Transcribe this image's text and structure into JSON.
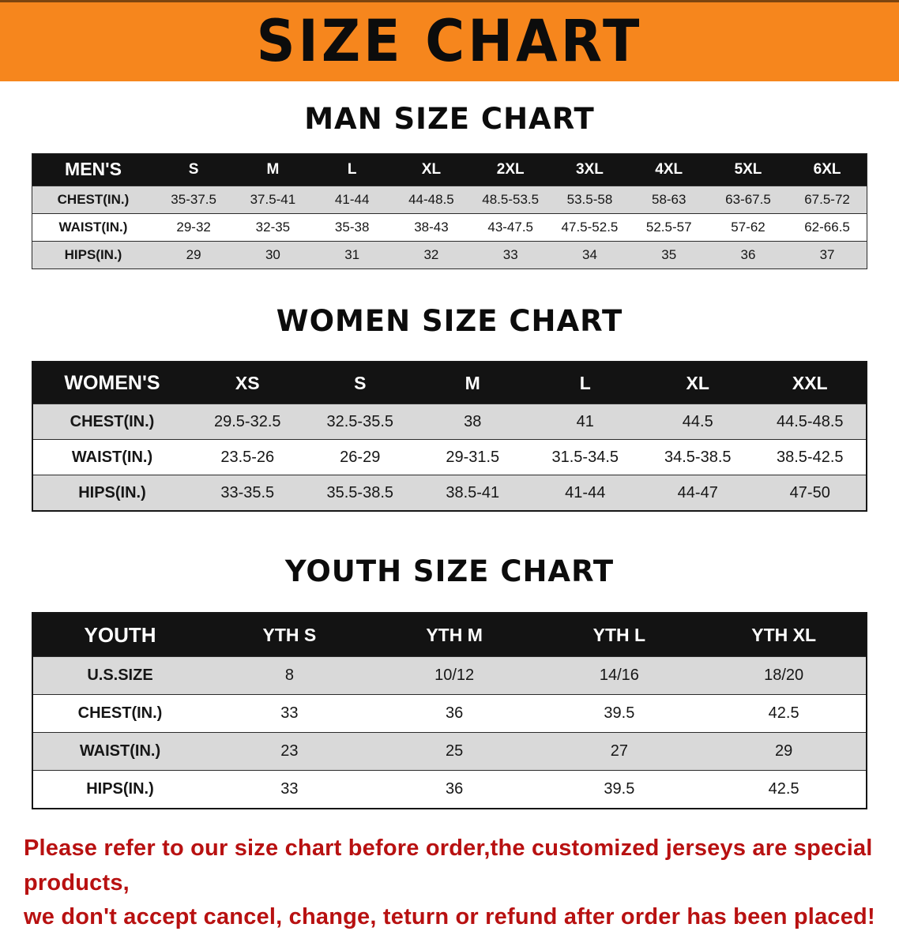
{
  "banner": {
    "title": "SIZE CHART"
  },
  "sections": {
    "men": {
      "heading": "MAN SIZE CHART"
    },
    "women": {
      "heading": "WOMEN SIZE CHART"
    },
    "youth": {
      "heading": "YOUTH SIZE CHART"
    }
  },
  "tables": {
    "men": {
      "header": [
        "MEN'S",
        "S",
        "M",
        "L",
        "XL",
        "2XL",
        "3XL",
        "4XL",
        "5XL",
        "6XL"
      ],
      "rows": [
        [
          "CHEST(IN.)",
          "35-37.5",
          "37.5-41",
          "41-44",
          "44-48.5",
          "48.5-53.5",
          "53.5-58",
          "58-63",
          "63-67.5",
          "67.5-72"
        ],
        [
          "WAIST(IN.)",
          "29-32",
          "32-35",
          "35-38",
          "38-43",
          "43-47.5",
          "47.5-52.5",
          "52.5-57",
          "57-62",
          "62-66.5"
        ],
        [
          "HIPS(IN.)",
          "29",
          "30",
          "31",
          "32",
          "33",
          "34",
          "35",
          "36",
          "37"
        ]
      ]
    },
    "women": {
      "header": [
        "WOMEN'S",
        "XS",
        "S",
        "M",
        "L",
        "XL",
        "XXL"
      ],
      "rows": [
        [
          "CHEST(IN.)",
          "29.5-32.5",
          "32.5-35.5",
          "38",
          "41",
          "44.5",
          "44.5-48.5"
        ],
        [
          "WAIST(IN.)",
          "23.5-26",
          "26-29",
          "29-31.5",
          "31.5-34.5",
          "34.5-38.5",
          "38.5-42.5"
        ],
        [
          "HIPS(IN.)",
          "33-35.5",
          "35.5-38.5",
          "38.5-41",
          "41-44",
          "44-47",
          "47-50"
        ]
      ]
    },
    "youth": {
      "header": [
        "YOUTH",
        "YTH S",
        "YTH M",
        "YTH L",
        "YTH XL"
      ],
      "rows": [
        [
          "U.S.SIZE",
          "8",
          "10/12",
          "14/16",
          "18/20"
        ],
        [
          "CHEST(IN.)",
          "33",
          "36",
          "39.5",
          "42.5"
        ],
        [
          "WAIST(IN.)",
          "23",
          "25",
          "27",
          "29"
        ],
        [
          "HIPS(IN.)",
          "33",
          "36",
          "39.5",
          "42.5"
        ]
      ]
    }
  },
  "disclaimer": {
    "line1": "Please refer to our size chart before order,the customized jerseys are special products,",
    "line2": "we don't accept cancel, change, teturn or refund after order has been placed!"
  },
  "colors": {
    "banner_orange": "#f6861d",
    "table_header_black": "#131313",
    "row_shade_gray": "#d9d9d9",
    "disclaimer_red": "#b81111"
  }
}
